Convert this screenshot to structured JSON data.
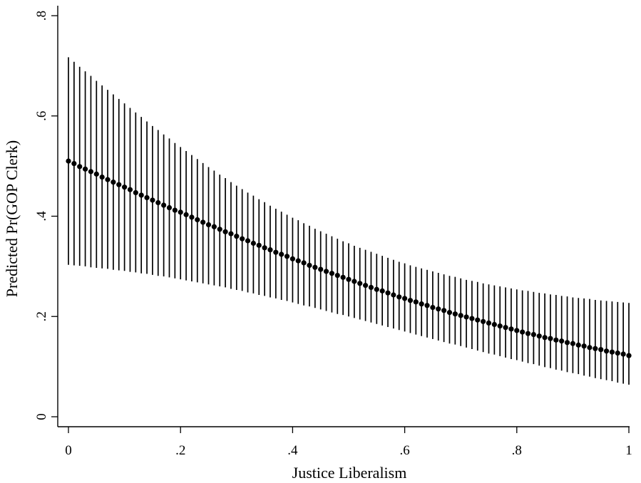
{
  "chart_data": {
    "type": "scatter",
    "title": "",
    "xlabel": "Justice Liberalism",
    "ylabel": "Predicted Pr(GOP Clerk)",
    "xlim": [
      0,
      1
    ],
    "ylim": [
      0,
      0.8
    ],
    "x_ticks": [
      {
        "value": 0,
        "label": "0"
      },
      {
        "value": 0.2,
        "label": ".2"
      },
      {
        "value": 0.4,
        "label": ".4"
      },
      {
        "value": 0.6,
        "label": ".6"
      },
      {
        "value": 0.8,
        "label": ".8"
      },
      {
        "value": 1,
        "label": "1"
      }
    ],
    "y_ticks": [
      {
        "value": 0,
        "label": "0"
      },
      {
        "value": 0.2,
        "label": ".2"
      },
      {
        "value": 0.4,
        "label": ".4"
      },
      {
        "value": 0.6,
        "label": ".6"
      },
      {
        "value": 0.8,
        "label": ".8"
      }
    ],
    "grid": false,
    "legend": "none",
    "marker_color": "#000000",
    "errorbar_color": "#000000",
    "series": [
      {
        "x": [
          0.0,
          0.01,
          0.02,
          0.03,
          0.04,
          0.05,
          0.06,
          0.07,
          0.08,
          0.09,
          0.1,
          0.11,
          0.12,
          0.13,
          0.14,
          0.15,
          0.16,
          0.17,
          0.18,
          0.19,
          0.2,
          0.21,
          0.22,
          0.23,
          0.24,
          0.25,
          0.26,
          0.27,
          0.28,
          0.29,
          0.3,
          0.31,
          0.32,
          0.33,
          0.34,
          0.35,
          0.36,
          0.37,
          0.38,
          0.39,
          0.4,
          0.41,
          0.42,
          0.43,
          0.44,
          0.45,
          0.46,
          0.47,
          0.48,
          0.49,
          0.5,
          0.51,
          0.52,
          0.53,
          0.54,
          0.55,
          0.56,
          0.57,
          0.58,
          0.59,
          0.6,
          0.61,
          0.62,
          0.63,
          0.64,
          0.65,
          0.66,
          0.67,
          0.68,
          0.69,
          0.7,
          0.71,
          0.72,
          0.73,
          0.74,
          0.75,
          0.76,
          0.77,
          0.78,
          0.79,
          0.8,
          0.81,
          0.82,
          0.83,
          0.84,
          0.85,
          0.86,
          0.87,
          0.88,
          0.89,
          0.9,
          0.91,
          0.92,
          0.93,
          0.94,
          0.95,
          0.96,
          0.97,
          0.98,
          0.99,
          1.0
        ],
        "y": [
          0.51,
          0.505,
          0.499,
          0.494,
          0.489,
          0.484,
          0.478,
          0.473,
          0.468,
          0.463,
          0.458,
          0.453,
          0.447,
          0.442,
          0.437,
          0.432,
          0.427,
          0.422,
          0.417,
          0.412,
          0.408,
          0.403,
          0.398,
          0.393,
          0.388,
          0.383,
          0.379,
          0.374,
          0.369,
          0.365,
          0.36,
          0.355,
          0.351,
          0.346,
          0.342,
          0.337,
          0.333,
          0.328,
          0.324,
          0.32,
          0.315,
          0.311,
          0.307,
          0.302,
          0.298,
          0.294,
          0.29,
          0.286,
          0.282,
          0.278,
          0.274,
          0.27,
          0.266,
          0.262,
          0.258,
          0.254,
          0.251,
          0.247,
          0.243,
          0.239,
          0.236,
          0.232,
          0.229,
          0.225,
          0.222,
          0.218,
          0.215,
          0.212,
          0.208,
          0.205,
          0.202,
          0.199,
          0.196,
          0.193,
          0.19,
          0.187,
          0.184,
          0.181,
          0.178,
          0.175,
          0.172,
          0.169,
          0.166,
          0.164,
          0.161,
          0.158,
          0.156,
          0.153,
          0.151,
          0.148,
          0.146,
          0.143,
          0.141,
          0.138,
          0.136,
          0.134,
          0.131,
          0.129,
          0.127,
          0.125,
          0.122
        ],
        "ci_low": [
          0.303,
          0.302,
          0.301,
          0.3,
          0.298,
          0.297,
          0.296,
          0.295,
          0.293,
          0.292,
          0.291,
          0.289,
          0.288,
          0.286,
          0.285,
          0.283,
          0.281,
          0.28,
          0.278,
          0.276,
          0.274,
          0.272,
          0.27,
          0.268,
          0.266,
          0.264,
          0.262,
          0.26,
          0.258,
          0.255,
          0.253,
          0.251,
          0.248,
          0.246,
          0.243,
          0.241,
          0.238,
          0.236,
          0.233,
          0.231,
          0.228,
          0.225,
          0.222,
          0.22,
          0.217,
          0.214,
          0.211,
          0.208,
          0.205,
          0.203,
          0.2,
          0.197,
          0.194,
          0.191,
          0.188,
          0.185,
          0.182,
          0.179,
          0.176,
          0.173,
          0.17,
          0.167,
          0.164,
          0.161,
          0.158,
          0.155,
          0.152,
          0.149,
          0.146,
          0.144,
          0.141,
          0.138,
          0.135,
          0.132,
          0.129,
          0.126,
          0.124,
          0.121,
          0.118,
          0.115,
          0.113,
          0.11,
          0.107,
          0.105,
          0.102,
          0.099,
          0.097,
          0.094,
          0.092,
          0.089,
          0.087,
          0.085,
          0.082,
          0.08,
          0.077,
          0.075,
          0.073,
          0.071,
          0.068,
          0.066,
          0.064
        ],
        "ci_high": [
          0.717,
          0.708,
          0.698,
          0.689,
          0.68,
          0.67,
          0.661,
          0.652,
          0.643,
          0.634,
          0.625,
          0.616,
          0.607,
          0.598,
          0.589,
          0.58,
          0.572,
          0.563,
          0.555,
          0.546,
          0.538,
          0.53,
          0.522,
          0.514,
          0.506,
          0.498,
          0.491,
          0.483,
          0.476,
          0.468,
          0.461,
          0.454,
          0.447,
          0.441,
          0.434,
          0.428,
          0.421,
          0.415,
          0.409,
          0.403,
          0.397,
          0.392,
          0.386,
          0.381,
          0.375,
          0.37,
          0.365,
          0.36,
          0.355,
          0.35,
          0.346,
          0.341,
          0.337,
          0.333,
          0.329,
          0.325,
          0.321,
          0.317,
          0.313,
          0.309,
          0.306,
          0.302,
          0.299,
          0.296,
          0.293,
          0.29,
          0.287,
          0.284,
          0.281,
          0.279,
          0.276,
          0.273,
          0.271,
          0.269,
          0.266,
          0.264,
          0.262,
          0.26,
          0.258,
          0.256,
          0.254,
          0.252,
          0.251,
          0.249,
          0.247,
          0.246,
          0.244,
          0.243,
          0.241,
          0.24,
          0.238,
          0.237,
          0.236,
          0.235,
          0.233,
          0.232,
          0.231,
          0.23,
          0.229,
          0.228,
          0.227
        ]
      }
    ]
  }
}
